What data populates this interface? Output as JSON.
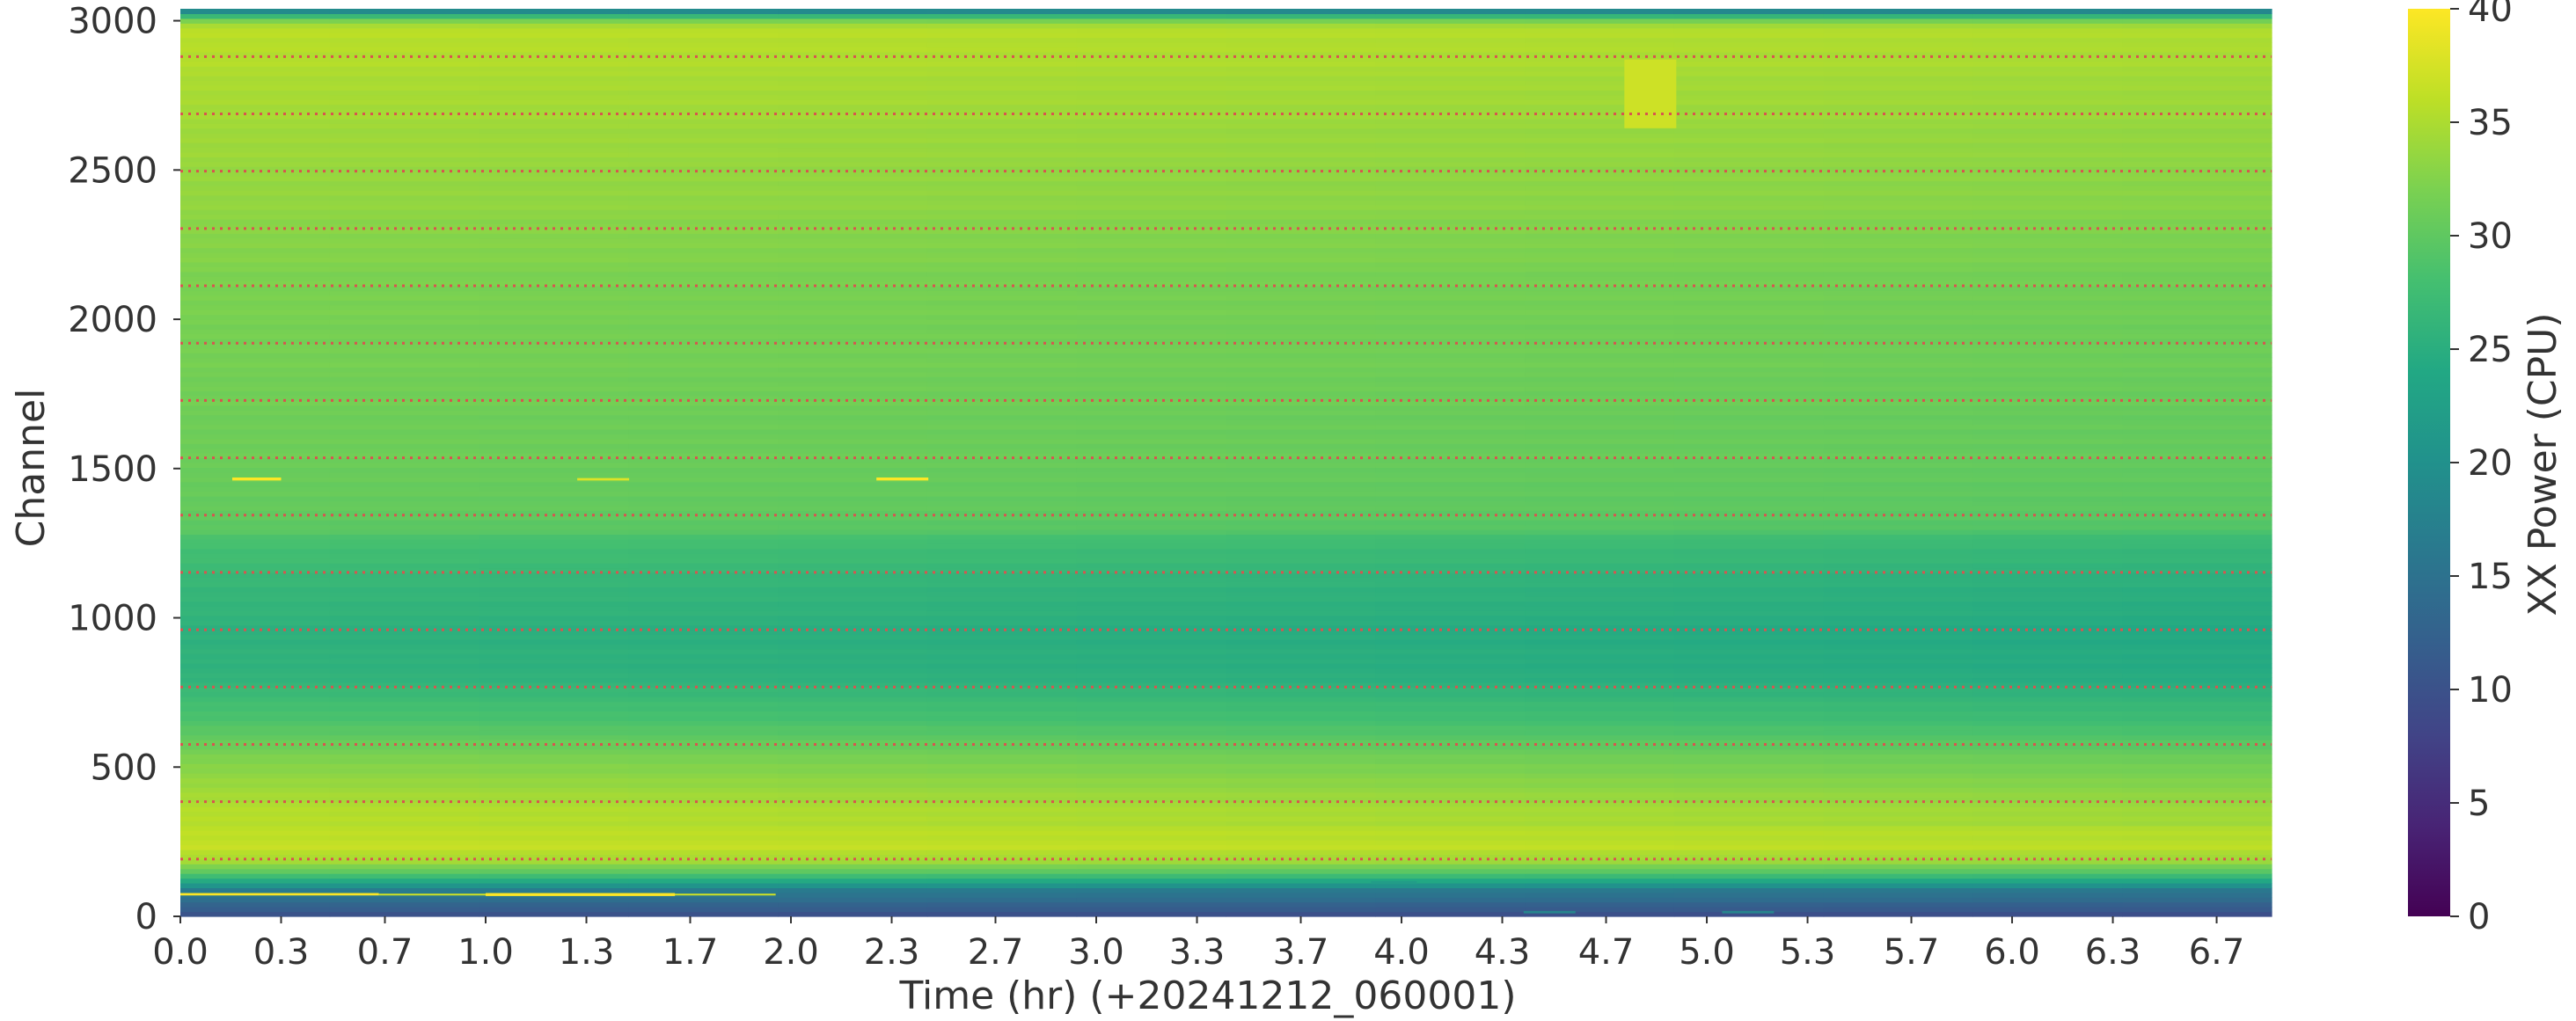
{
  "chart_data": {
    "type": "heatmap",
    "title": "",
    "xlabel": "Time (hr) (+20241212_060001)",
    "ylabel": "Channel",
    "xlim": [
      0,
      6.85
    ],
    "ylim": [
      0,
      3040
    ],
    "x_ticks": [
      0.0,
      0.33,
      0.67,
      1.0,
      1.33,
      1.67,
      2.0,
      2.33,
      2.67,
      3.0,
      3.33,
      3.67,
      4.0,
      4.33,
      4.67,
      5.0,
      5.33,
      5.67,
      6.0,
      6.33,
      6.67
    ],
    "x_tick_labels": [
      "0.0",
      "0.3",
      "0.7",
      "1.0",
      "1.3",
      "1.7",
      "2.0",
      "2.3",
      "2.7",
      "3.0",
      "3.3",
      "3.7",
      "4.0",
      "4.3",
      "4.7",
      "5.0",
      "5.3",
      "5.7",
      "6.0",
      "6.3",
      "6.7"
    ],
    "y_ticks": [
      0,
      500,
      1000,
      1500,
      2000,
      2500,
      3000
    ],
    "y_tick_labels": [
      "0",
      "500",
      "1000",
      "1500",
      "2000",
      "2500",
      "3000"
    ],
    "colormap": "viridis",
    "colorbar": {
      "label": "XX Power (CPU)",
      "range": [
        0,
        40
      ],
      "ticks": [
        0,
        5,
        10,
        15,
        20,
        25,
        30,
        35,
        40
      ],
      "tick_labels": [
        "0",
        "5",
        "10",
        "15",
        "20",
        "25",
        "30",
        "35",
        "40"
      ]
    },
    "reference_lines": {
      "color": "#d9534f",
      "style": "dotted",
      "orientation": "horizontal",
      "channels": [
        192,
        384,
        576,
        768,
        960,
        1152,
        1344,
        1536,
        1728,
        1920,
        2112,
        2304,
        2496,
        2688,
        2880
      ]
    },
    "channel_profile": [
      {
        "ch": 0,
        "v": 10
      },
      {
        "ch": 40,
        "v": 13
      },
      {
        "ch": 90,
        "v": 17
      },
      {
        "ch": 130,
        "v": 27
      },
      {
        "ch": 180,
        "v": 34
      },
      {
        "ch": 230,
        "v": 36.5
      },
      {
        "ch": 350,
        "v": 35.5
      },
      {
        "ch": 500,
        "v": 33
      },
      {
        "ch": 650,
        "v": 29
      },
      {
        "ch": 800,
        "v": 26
      },
      {
        "ch": 950,
        "v": 25.5
      },
      {
        "ch": 1100,
        "v": 26.5
      },
      {
        "ch": 1250,
        "v": 28
      },
      {
        "ch": 1300,
        "v": 30
      },
      {
        "ch": 1500,
        "v": 31
      },
      {
        "ch": 1800,
        "v": 31.5
      },
      {
        "ch": 2100,
        "v": 32
      },
      {
        "ch": 2400,
        "v": 33.5
      },
      {
        "ch": 2700,
        "v": 34.5
      },
      {
        "ch": 2900,
        "v": 35.5
      },
      {
        "ch": 2980,
        "v": 36
      },
      {
        "ch": 3010,
        "v": 30
      },
      {
        "ch": 3030,
        "v": 20
      },
      {
        "ch": 3040,
        "v": 14
      }
    ],
    "time_drift": -1.4,
    "features": [
      {
        "t0": 0.0,
        "t1": 0.65,
        "ch0": 70,
        "ch1": 78,
        "v": 40
      },
      {
        "t0": 0.65,
        "t1": 1.95,
        "ch0": 70,
        "ch1": 76,
        "v": 37
      },
      {
        "t0": 1.0,
        "t1": 1.62,
        "ch0": 68,
        "ch1": 78,
        "v": 40
      },
      {
        "t0": 0.17,
        "t1": 0.33,
        "ch0": 1460,
        "ch1": 1470,
        "v": 40
      },
      {
        "t0": 1.3,
        "t1": 1.47,
        "ch0": 1460,
        "ch1": 1468,
        "v": 38
      },
      {
        "t0": 2.28,
        "t1": 2.45,
        "ch0": 1460,
        "ch1": 1470,
        "v": 40
      },
      {
        "t0": 4.73,
        "t1": 4.9,
        "ch0": 2640,
        "ch1": 2870,
        "v": 37
      },
      {
        "t0": 3.9,
        "t1": 4.05,
        "ch0": 108,
        "ch1": 118,
        "v": 22
      },
      {
        "t0": 4.4,
        "t1": 4.57,
        "ch0": 10,
        "ch1": 18,
        "v": 18
      },
      {
        "t0": 5.05,
        "t1": 5.22,
        "ch0": 10,
        "ch1": 18,
        "v": 18
      }
    ]
  }
}
